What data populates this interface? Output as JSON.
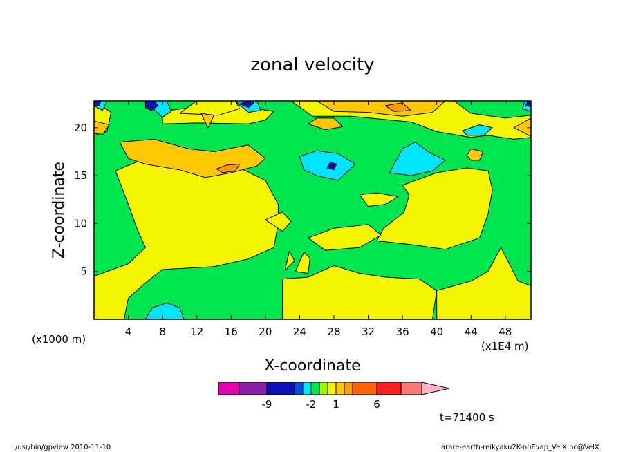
{
  "chart_data": {
    "type": "heatmap",
    "title": "zonal velocity",
    "xlabel": "X-coordinate",
    "ylabel": "Z-coordinate",
    "x_unit_note": "(x1E4 m)",
    "y_unit_note": "(x1000 m)",
    "xlim": [
      0,
      51
    ],
    "ylim": [
      0,
      22.8
    ],
    "x_ticks": [
      4,
      8,
      12,
      16,
      20,
      24,
      28,
      32,
      36,
      40,
      44,
      48
    ],
    "x_tick_labels": [
      "4",
      "8",
      "12",
      "16",
      "20",
      "24",
      "28",
      "32",
      "36",
      "40",
      "44",
      "48"
    ],
    "y_ticks": [
      5,
      10,
      15,
      20
    ],
    "y_tick_labels": [
      "5",
      "10",
      "15",
      "20"
    ],
    "legend": {
      "type": "colorbar",
      "placement": "bottom",
      "colors": [
        "#e600b4",
        "#8c1eaa",
        "#0a14b4",
        "#0050e6",
        "#00e6ff",
        "#00e650",
        "#a0f500",
        "#f5f500",
        "#ffc800",
        "#ffa000",
        "#ff6400",
        "#ff1e1e",
        "#ff7878",
        "#ffb4c8"
      ],
      "tick_labels": [
        "-9",
        "-2",
        "1",
        "6"
      ]
    },
    "regions": [
      {
        "color": "#f5f500",
        "label": "yellow",
        "poly": [
          [
            0,
            4.5
          ],
          [
            4,
            5.8
          ],
          [
            6,
            7.5
          ],
          [
            5,
            9.5
          ],
          [
            4,
            12
          ],
          [
            2.5,
            15.5
          ],
          [
            6,
            16.8
          ],
          [
            14,
            16.8
          ],
          [
            17,
            15.8
          ],
          [
            20,
            14.5
          ],
          [
            21.5,
            12
          ],
          [
            21.5,
            10
          ],
          [
            21,
            7.5
          ],
          [
            18,
            6.3
          ],
          [
            14,
            5.5
          ],
          [
            8,
            5.2
          ],
          [
            6,
            3.8
          ],
          [
            4,
            2.2
          ],
          [
            3.5,
            0
          ],
          [
            0,
            0
          ]
        ]
      },
      {
        "color": "#f5f500",
        "label": "yellow",
        "poly": [
          [
            22,
            0
          ],
          [
            22,
            4.2
          ],
          [
            25,
            4.4
          ],
          [
            28,
            5.6
          ],
          [
            31,
            4.8
          ],
          [
            34,
            4.4
          ],
          [
            38,
            4.2
          ],
          [
            40,
            3
          ],
          [
            39.5,
            0
          ]
        ]
      },
      {
        "color": "#f5f500",
        "label": "yellow",
        "poly": [
          [
            40,
            0
          ],
          [
            40,
            3
          ],
          [
            44,
            4
          ],
          [
            46,
            5
          ],
          [
            47.5,
            7.5
          ],
          [
            49.5,
            4
          ],
          [
            51,
            3.5
          ],
          [
            51,
            0
          ]
        ]
      },
      {
        "color": "#f5f500",
        "label": "yellow",
        "poly": [
          [
            36,
            14
          ],
          [
            40,
            15.3
          ],
          [
            43.5,
            15.8
          ],
          [
            46,
            15.5
          ],
          [
            46.5,
            13.5
          ],
          [
            46,
            11
          ],
          [
            45,
            8.5
          ],
          [
            41,
            7.3
          ],
          [
            37,
            7.8
          ],
          [
            33,
            8.2
          ],
          [
            33.8,
            9.5
          ],
          [
            36.2,
            11.2
          ],
          [
            36.8,
            13
          ]
        ]
      },
      {
        "color": "#f5f500",
        "label": "yellow",
        "poly": [
          [
            25,
            8.5
          ],
          [
            28,
            9.5
          ],
          [
            32,
            9.9
          ],
          [
            33.5,
            8.8
          ],
          [
            31,
            7.5
          ],
          [
            27,
            7.2
          ]
        ]
      },
      {
        "color": "#f5f500",
        "label": "yellow",
        "poly": [
          [
            31,
            13
          ],
          [
            33,
            13.2
          ],
          [
            35.5,
            12.8
          ],
          [
            34,
            12
          ],
          [
            32,
            11.8
          ]
        ]
      },
      {
        "color": "#f5f500",
        "label": "yellow",
        "poly": [
          [
            20,
            10.4
          ],
          [
            22,
            11.2
          ],
          [
            23,
            10.2
          ],
          [
            22,
            9.2
          ]
        ]
      },
      {
        "color": "#f5f500",
        "label": "yellow",
        "poly": [
          [
            23.5,
            5
          ],
          [
            24.5,
            7
          ],
          [
            25.2,
            6.4
          ],
          [
            25,
            4.8
          ]
        ]
      },
      {
        "color": "#f5f500",
        "label": "yellow",
        "poly": [
          [
            22.3,
            5.1
          ],
          [
            22.8,
            7.1
          ],
          [
            23.4,
            6.1
          ]
        ]
      },
      {
        "color": "#f5f500",
        "label": "yellow",
        "poly": [
          [
            42,
            22.8
          ],
          [
            44,
            21.5
          ],
          [
            48,
            21
          ],
          [
            51,
            21.3
          ],
          [
            51,
            19
          ],
          [
            49,
            18.8
          ],
          [
            46,
            19.2
          ],
          [
            44,
            19
          ],
          [
            40,
            19.6
          ],
          [
            37,
            20.6
          ],
          [
            30,
            21.2
          ],
          [
            25.5,
            21.2
          ],
          [
            23,
            22.8
          ]
        ]
      },
      {
        "color": "#f5f500",
        "label": "yellow",
        "poly": [
          [
            0,
            22.8
          ],
          [
            2,
            21.6
          ],
          [
            1.5,
            19.6
          ],
          [
            0,
            19.2
          ]
        ]
      },
      {
        "color": "#f5f500",
        "label": "yellow",
        "poly": [
          [
            8,
            20.4
          ],
          [
            12,
            20.5
          ],
          [
            18,
            20.4
          ],
          [
            20,
            20.8
          ],
          [
            21,
            21.7
          ],
          [
            16,
            22.4
          ],
          [
            12,
            22.2
          ],
          [
            8,
            21.7
          ]
        ]
      },
      {
        "color": "#f5f500",
        "label": "yellow",
        "poly": [
          [
            12,
            22.8
          ],
          [
            10,
            21.5
          ],
          [
            14.5,
            21.3
          ],
          [
            17,
            22
          ],
          [
            16.5,
            22.8
          ]
        ]
      },
      {
        "color": "#ffc800",
        "label": "orange",
        "poly": [
          [
            3,
            18.5
          ],
          [
            4,
            16.8
          ],
          [
            6,
            16.2
          ],
          [
            10,
            15.6
          ],
          [
            13,
            14.8
          ],
          [
            16,
            15.3
          ],
          [
            19,
            16
          ],
          [
            20,
            16.8
          ],
          [
            18,
            18.2
          ],
          [
            14,
            17.5
          ],
          [
            11,
            17.8
          ],
          [
            7,
            18.8
          ]
        ]
      },
      {
        "color": "#ffc800",
        "label": "orange",
        "poly": [
          [
            25,
            20.4
          ],
          [
            27,
            19.8
          ],
          [
            29,
            20.1
          ],
          [
            28,
            21
          ],
          [
            26,
            21
          ]
        ]
      },
      {
        "color": "#ffc800",
        "label": "orange",
        "poly": [
          [
            26,
            22.8
          ],
          [
            28,
            21.7
          ],
          [
            32,
            21.6
          ],
          [
            36,
            21.2
          ],
          [
            39.5,
            21.6
          ],
          [
            41,
            22.8
          ]
        ]
      },
      {
        "color": "#ffc800",
        "label": "orange",
        "poly": [
          [
            49,
            20
          ],
          [
            51,
            21
          ],
          [
            51,
            19.1
          ]
        ]
      },
      {
        "color": "#ffc800",
        "label": "orange",
        "poly": [
          [
            0,
            20.7
          ],
          [
            1.8,
            20.3
          ],
          [
            1,
            19.3
          ],
          [
            0,
            19.4
          ]
        ]
      },
      {
        "color": "#ffc800",
        "label": "orange",
        "poly": [
          [
            43.5,
            17.1
          ],
          [
            44,
            17.8
          ],
          [
            45.4,
            17.5
          ],
          [
            45,
            16.6
          ],
          [
            44,
            16.6
          ]
        ]
      },
      {
        "color": "#ffc800",
        "label": "orange",
        "poly": [
          [
            12.5,
            21.5
          ],
          [
            13.3,
            20
          ],
          [
            14,
            21.3
          ]
        ]
      },
      {
        "color": "#ff9a00",
        "label": "deep-orange",
        "poly": [
          [
            14.3,
            15.7
          ],
          [
            15.5,
            16.1
          ],
          [
            17,
            16.2
          ],
          [
            16.5,
            15.5
          ],
          [
            15,
            15.3
          ]
        ]
      },
      {
        "color": "#ff9a00",
        "label": "deep-orange",
        "poly": [
          [
            34,
            22.3
          ],
          [
            35,
            21.7
          ],
          [
            37,
            21.8
          ],
          [
            36,
            22.6
          ]
        ]
      },
      {
        "color": "#00e6ff",
        "label": "cyan",
        "poly": [
          [
            24,
            17
          ],
          [
            26,
            17.6
          ],
          [
            28.5,
            17.3
          ],
          [
            30.5,
            16.2
          ],
          [
            28.5,
            14.5
          ],
          [
            26,
            15
          ],
          [
            24.5,
            15.6
          ]
        ]
      },
      {
        "color": "#00e6ff",
        "label": "cyan",
        "poly": [
          [
            34.5,
            15.3
          ],
          [
            36,
            17.8
          ],
          [
            37.5,
            18.5
          ],
          [
            39,
            17.5
          ],
          [
            41,
            16.6
          ],
          [
            39.5,
            15.5
          ],
          [
            37,
            15
          ]
        ]
      },
      {
        "color": "#00e6ff",
        "label": "cyan",
        "poly": [
          [
            43,
            19.7
          ],
          [
            45,
            20.3
          ],
          [
            46.5,
            20
          ],
          [
            45.5,
            19.2
          ],
          [
            43.5,
            19.2
          ]
        ]
      },
      {
        "color": "#00e6ff",
        "label": "cyan",
        "poly": [
          [
            6.5,
            22.3
          ],
          [
            8,
            21.1
          ],
          [
            9,
            21.7
          ],
          [
            8.5,
            22.8
          ],
          [
            7,
            22.8
          ]
        ]
      },
      {
        "color": "#00e6ff",
        "label": "cyan",
        "poly": [
          [
            16.5,
            22.8
          ],
          [
            18,
            21.6
          ],
          [
            19.5,
            21.8
          ],
          [
            19,
            22.8
          ]
        ]
      },
      {
        "color": "#00e6ff",
        "label": "cyan",
        "poly": [
          [
            0,
            22.3
          ],
          [
            1,
            21.8
          ],
          [
            1.5,
            22.8
          ],
          [
            0,
            22.8
          ]
        ]
      },
      {
        "color": "#00e6ff",
        "label": "cyan",
        "poly": [
          [
            50,
            22
          ],
          [
            51,
            21.7
          ],
          [
            51,
            22.8
          ],
          [
            50.3,
            22.8
          ]
        ]
      },
      {
        "color": "#00e6ff",
        "label": "cyan",
        "poly": [
          [
            6,
            0
          ],
          [
            6.8,
            1.2
          ],
          [
            8.5,
            1.7
          ],
          [
            10,
            1.2
          ],
          [
            10.5,
            0
          ]
        ]
      },
      {
        "color": "#0a14b4",
        "label": "blue",
        "poly": [
          [
            6,
            22.1
          ],
          [
            6.7,
            21.8
          ],
          [
            7.5,
            22.3
          ],
          [
            7,
            22.8
          ],
          [
            6,
            22.8
          ]
        ]
      },
      {
        "color": "#0a14b4",
        "label": "blue",
        "poly": [
          [
            17,
            22.5
          ],
          [
            18,
            22.1
          ],
          [
            18.7,
            22.6
          ],
          [
            18,
            22.8
          ]
        ]
      },
      {
        "color": "#0a14b4",
        "label": "blue",
        "poly": [
          [
            27.2,
            15.8
          ],
          [
            27.6,
            16.4
          ],
          [
            28.3,
            16.2
          ],
          [
            28,
            15.6
          ]
        ]
      },
      {
        "color": "#0a14b4",
        "label": "blue",
        "poly": [
          [
            0,
            22.3
          ],
          [
            0.6,
            22.3
          ],
          [
            0.8,
            22.8
          ],
          [
            0,
            22.8
          ]
        ]
      },
      {
        "color": "#0a14b4",
        "label": "blue",
        "poly": [
          [
            50.4,
            22.3
          ],
          [
            51,
            22.2
          ],
          [
            51,
            22.8
          ],
          [
            50.6,
            22.8
          ]
        ]
      }
    ]
  },
  "annotations": {
    "time_label": "t=71400 s",
    "footer_left": "/usr/bin/gpview   2010-11-10",
    "footer_right": "arare-earth-reikyaku2K-noEvap_VelX.nc@VelX"
  }
}
